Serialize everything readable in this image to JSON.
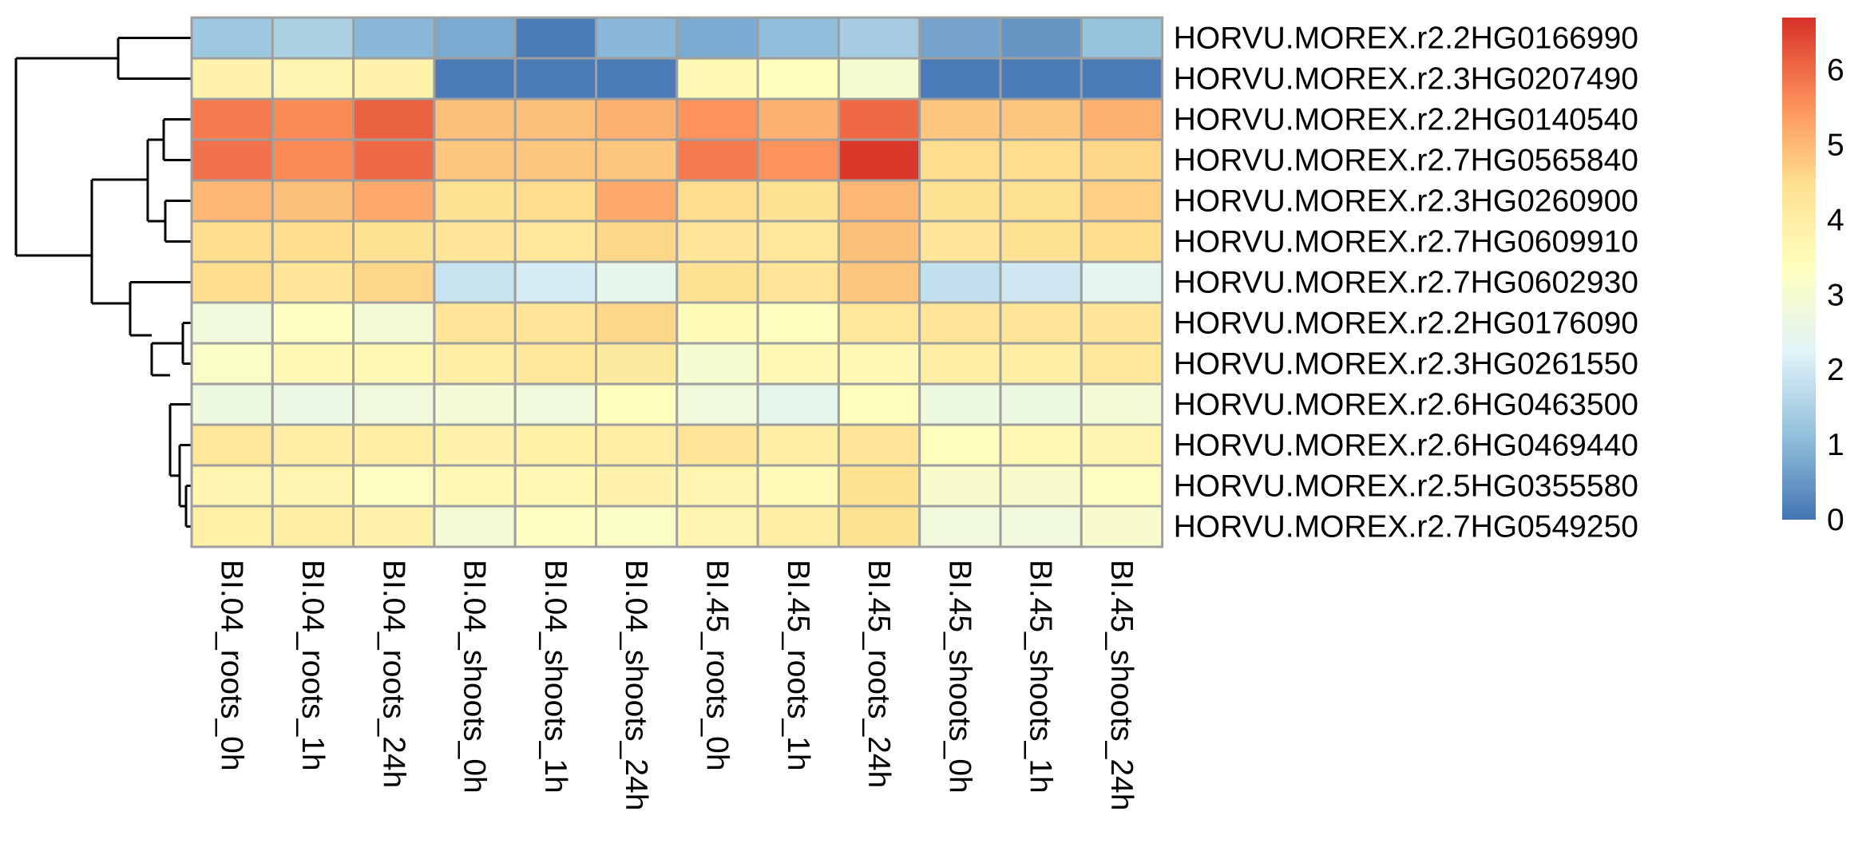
{
  "chart_data": {
    "type": "heatmap",
    "title": "",
    "xlabel": "",
    "ylabel": "",
    "columns": [
      "BI.04_roots_0h",
      "BI.04_roots_1h",
      "BI.04_roots_24h",
      "BI.04_shoots_0h",
      "BI.04_shoots_1h",
      "BI.04_shoots_24h",
      "BI.45_roots_0h",
      "BI.45_roots_1h",
      "BI.45_roots_24h",
      "BI.45_shoots_0h",
      "BI.45_shoots_1h",
      "BI.45_shoots_24h"
    ],
    "rows": [
      "HORVU.MOREX.r2.2HG0166990",
      "HORVU.MOREX.r2.3HG0207490",
      "HORVU.MOREX.r2.2HG0140540",
      "HORVU.MOREX.r2.7HG0565840",
      "HORVU.MOREX.r2.3HG0260900",
      "HORVU.MOREX.r2.7HG0609910",
      "HORVU.MOREX.r2.7HG0602930",
      "HORVU.MOREX.r2.2HG0176090",
      "HORVU.MOREX.r2.3HG0261550",
      "HORVU.MOREX.r2.6HG0463500",
      "HORVU.MOREX.r2.6HG0469440",
      "HORVU.MOREX.r2.5HG0355580",
      "HORVU.MOREX.r2.7HG0549250"
    ],
    "values": [
      [
        1.3,
        1.5,
        1.0,
        0.8,
        0.1,
        1.0,
        0.8,
        1.1,
        1.4,
        0.7,
        0.5,
        1.2
      ],
      [
        3.8,
        3.7,
        3.8,
        0.1,
        0.1,
        0.1,
        3.6,
        3.4,
        3.0,
        0.1,
        0.1,
        0.1
      ],
      [
        5.8,
        5.6,
        6.1,
        4.9,
        4.9,
        5.1,
        5.5,
        5.1,
        6.0,
        4.8,
        4.8,
        5.1
      ],
      [
        5.9,
        5.6,
        6.0,
        4.8,
        4.8,
        4.8,
        5.8,
        5.5,
        6.6,
        4.5,
        4.5,
        4.6
      ],
      [
        5.0,
        4.9,
        5.2,
        4.4,
        4.5,
        5.2,
        4.5,
        4.4,
        5.0,
        4.4,
        4.4,
        4.7
      ],
      [
        4.5,
        4.5,
        4.4,
        4.3,
        4.2,
        4.6,
        4.3,
        4.2,
        4.9,
        4.3,
        4.4,
        4.5
      ],
      [
        4.5,
        4.3,
        4.6,
        1.9,
        2.1,
        2.5,
        4.4,
        4.3,
        4.8,
        1.8,
        2.0,
        2.4
      ],
      [
        2.8,
        3.3,
        2.9,
        4.3,
        4.3,
        4.6,
        3.5,
        3.4,
        4.2,
        4.3,
        4.3,
        4.3
      ],
      [
        3.2,
        3.6,
        3.6,
        4.0,
        4.2,
        4.1,
        3.0,
        3.6,
        3.6,
        4.0,
        4.0,
        4.2
      ],
      [
        2.7,
        2.6,
        2.8,
        2.9,
        2.8,
        3.4,
        2.8,
        2.5,
        3.4,
        2.7,
        2.7,
        2.9
      ],
      [
        4.2,
        4.0,
        4.0,
        3.8,
        3.9,
        4.0,
        4.3,
        4.0,
        4.3,
        3.4,
        3.6,
        3.7
      ],
      [
        3.7,
        3.7,
        3.3,
        3.6,
        3.6,
        3.8,
        3.7,
        3.5,
        4.4,
        3.1,
        3.1,
        3.3
      ],
      [
        3.9,
        4.0,
        3.8,
        2.9,
        3.3,
        3.2,
        3.7,
        4.0,
        4.4,
        2.8,
        2.8,
        3.1
      ]
    ],
    "color_scale": {
      "min": 0,
      "max": 6.7,
      "stops": [
        "#4575b4",
        "#91bfdb",
        "#e0f3f8",
        "#ffffbf",
        "#fee090",
        "#fc8d59",
        "#d73027"
      ]
    },
    "legend": {
      "placement": "right",
      "ticks": [
        0,
        1,
        2,
        3,
        4,
        5,
        6
      ]
    },
    "row_dendrogram": true,
    "grid": true
  }
}
